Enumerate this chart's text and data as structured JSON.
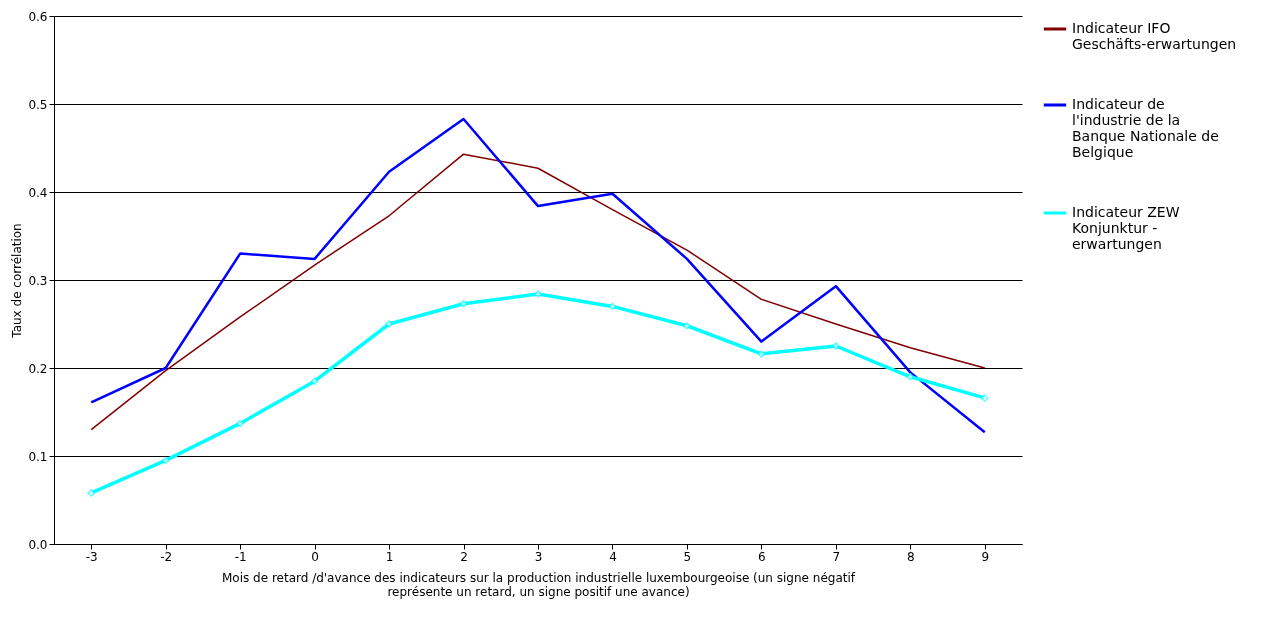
{
  "chart_data": {
    "type": "line",
    "xlabel": "Mois de retard /d'avance des indicateurs sur la production industrielle luxembourgeoise (un signe négatif représente un retard, un signe positif une avance)",
    "ylabel": "Taux de corrélation",
    "categories": [
      "-3",
      "-2",
      "-1",
      "0",
      "1",
      "2",
      "3",
      "4",
      "5",
      "6",
      "7",
      "8",
      "9"
    ],
    "series": [
      {
        "name": "Indicateur IFO Geschäfts-erwartungen",
        "color": "#800000",
        "values": [
          0.13,
          0.197,
          0.258,
          0.317,
          0.373,
          0.443,
          0.427,
          0.38,
          0.334,
          0.278,
          0.25,
          0.223,
          0.2
        ]
      },
      {
        "name": "Indicateur de l'industrie de la Banque Nationale de Belgique",
        "color": "#0000ff",
        "values": [
          0.161,
          0.2,
          0.33,
          0.324,
          0.423,
          0.483,
          0.384,
          0.398,
          0.324,
          0.23,
          0.293,
          0.195,
          0.127
        ]
      },
      {
        "name": "Indicateur ZEW Konjunktur - erwartungen",
        "color": "#00ffff",
        "marker": "diamond",
        "values": [
          0.058,
          0.095,
          0.137,
          0.185,
          0.25,
          0.273,
          0.284,
          0.27,
          0.248,
          0.216,
          0.225,
          0.19,
          0.166
        ]
      }
    ],
    "ylim": [
      0,
      0.6
    ],
    "yticks": [
      {
        "value": 0,
        "label": "0.0"
      },
      0.1,
      0.2,
      0.3,
      0.4,
      0.5,
      0.6
    ],
    "grid": "y",
    "legend": "right"
  }
}
